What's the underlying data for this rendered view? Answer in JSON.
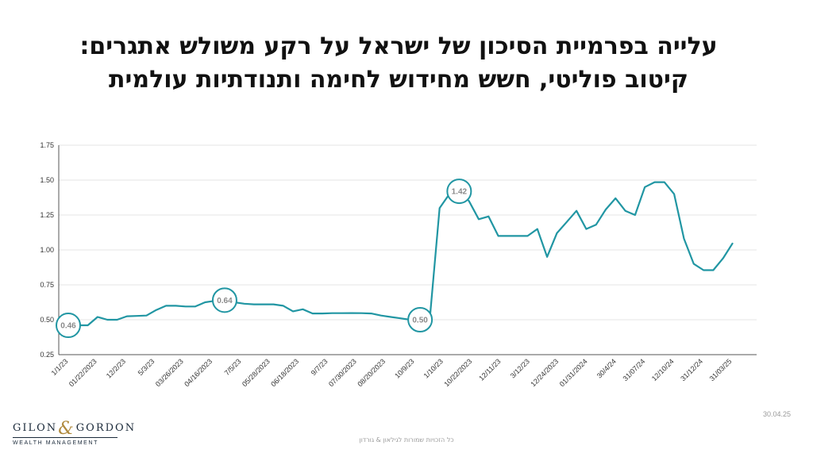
{
  "title": {
    "line1": "עלייה בפרמיית הסיכון של ישראל על רקע משולש אתגרים:",
    "line2": "קיטוב פוליטי, חשש מחידוש לחימה ותנודתיות עולמית"
  },
  "footer": {
    "date": "30.04.25",
    "rights": "כל הזכויות שמורות לגילאון & גורדון"
  },
  "logo": {
    "left": "GILON",
    "amp": "&",
    "right": "GORDON",
    "tagline": "WEALTH MANAGEMENT"
  },
  "colors": {
    "line": "#2196a3",
    "grid": "#e6e6e6",
    "axis": "#555555",
    "text": "#333333",
    "callout_text": "#8a8a8a"
  },
  "chart_data": {
    "type": "line",
    "xlabel": "",
    "ylabel": "",
    "ylim": [
      0.25,
      1.75
    ],
    "yticks": [
      "0.25",
      "0.50",
      "0.75",
      "1.00",
      "1.25",
      "1.50",
      "1.75"
    ],
    "grid": true,
    "xticks": [
      "1/1/23",
      "01/22/2023",
      "12/2/23",
      "5/3/23",
      "03/26/2023",
      "04/16/2023",
      "7/5/23",
      "05/28/2023",
      "06/18/2023",
      "9/7/23",
      "07/30/2023",
      "08/20/2023",
      "10/9/23",
      "1/10/23",
      "10/22/2023",
      "12/11/23",
      "3/12/23",
      "12/24/2023",
      "01/31/2024",
      "30/4/24",
      "31/07/24",
      "12/10/24",
      "31/12/24",
      "31/03/25"
    ],
    "series": [
      {
        "values": [
          0.46,
          0.46,
          0.46,
          0.52,
          0.5,
          0.5,
          0.525,
          0.527,
          0.53,
          0.57,
          0.6,
          0.6,
          0.595,
          0.595,
          0.625,
          0.635,
          0.64,
          0.625,
          0.615,
          0.61,
          0.61,
          0.61,
          0.6,
          0.56,
          0.575,
          0.545,
          0.545,
          0.547,
          0.547,
          0.548,
          0.547,
          0.545,
          0.53,
          0.52,
          0.51,
          0.5,
          0.5,
          0.51,
          1.3,
          1.4,
          1.42,
          1.35,
          1.22,
          1.24,
          1.1,
          1.1,
          1.1,
          1.1,
          1.15,
          0.95,
          1.12,
          1.2,
          1.28,
          1.15,
          1.18,
          1.29,
          1.37,
          1.28,
          1.25,
          1.45,
          1.485,
          1.485,
          1.4,
          1.08,
          0.9,
          0.855,
          0.855,
          0.94,
          1.05
        ]
      }
    ],
    "annotations": [
      {
        "label": "0.46",
        "index": 0
      },
      {
        "label": "0.64",
        "index": 16
      },
      {
        "label": "0.50",
        "index": 36
      },
      {
        "label": "1.42",
        "index": 40
      }
    ]
  }
}
